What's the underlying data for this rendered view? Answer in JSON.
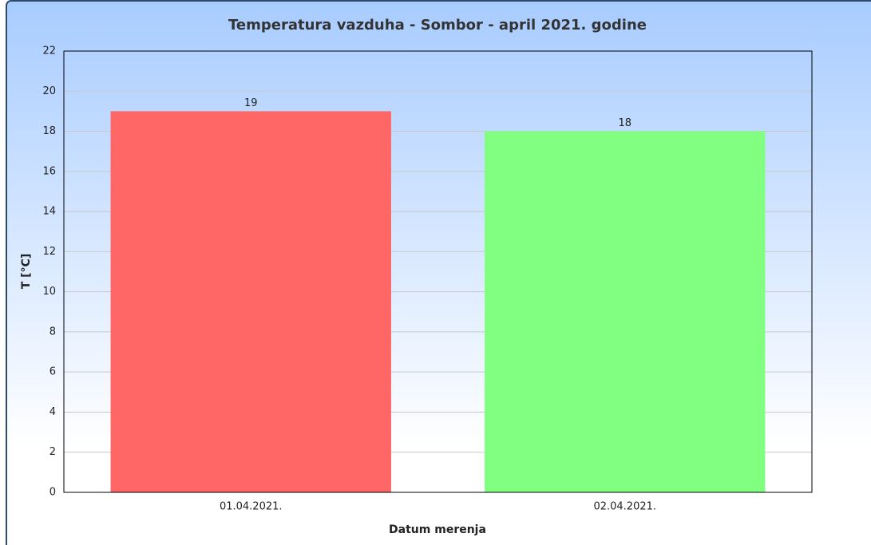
{
  "chart_data": {
    "type": "bar",
    "title": "Temperatura vazduha - Sombor - april 2021. godine",
    "x_label": "Datum merenja",
    "y_label": "T [°C]",
    "categories": [
      "01.04.2021.",
      "02.04.2021."
    ],
    "values": [
      19,
      18
    ],
    "colors": [
      "#ff6666",
      "#80ff80"
    ],
    "ylim": [
      0,
      22
    ],
    "yticks": [
      0,
      2,
      4,
      6,
      8,
      10,
      12,
      14,
      16,
      18,
      20,
      22
    ],
    "grid": true
  }
}
